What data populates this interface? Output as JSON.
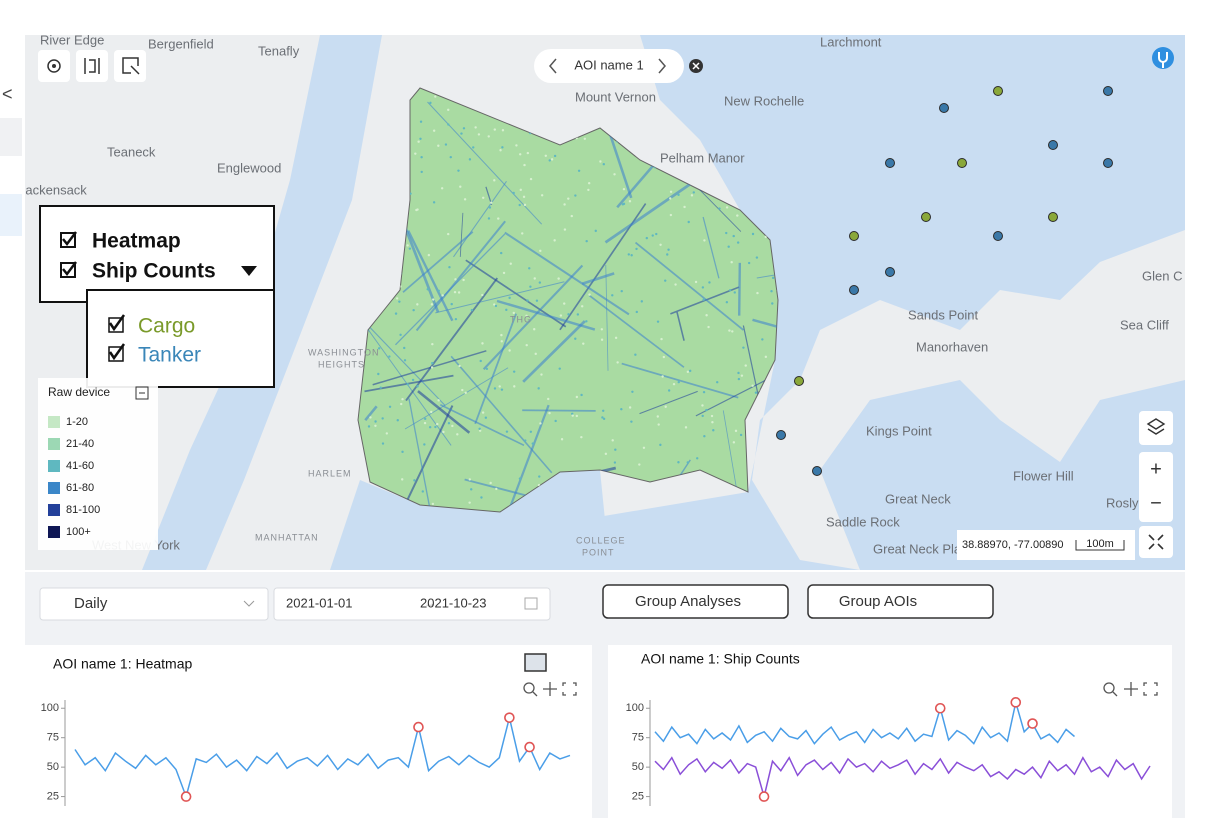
{
  "sidebar": {
    "back": "<"
  },
  "map": {
    "labels": [
      "River Edge",
      "Bergenfield",
      "Tenafly",
      "Larchmont",
      "Mount Vernon",
      "New Rochelle",
      "Teaneck",
      "Englewood",
      "Pelham Manor",
      "Hackensack",
      "Glen C",
      "Sea Cliff",
      "Sands Point",
      "Manorhaven",
      "Kings Point",
      "Flower Hill",
      "Great Neck",
      "Rosly",
      "Saddle Rock",
      "Great Neck Pla",
      "West New York",
      "THG"
    ],
    "caps": [
      "WASHINGTON",
      "HEIGHTS",
      "HARLEM",
      "MANHATTAN",
      "COLLEGE",
      "POINT"
    ],
    "aoi_name": "AOI name 1",
    "coordinates": "38.88970, -77.00890",
    "scale": "100m",
    "zoom_in": "+",
    "zoom_out": "−"
  },
  "layers": {
    "heatmap": "Heatmap",
    "ship_counts": "Ship Counts",
    "cargo": "Cargo",
    "tanker": "Tanker",
    "cargo_color": "#7a9a2a",
    "tanker_color": "#3a86b8"
  },
  "legend": {
    "title": "Raw device",
    "items": [
      {
        "label": "1-20",
        "color": "#c5e8c5"
      },
      {
        "label": "21-40",
        "color": "#9cd8b4"
      },
      {
        "label": "41-60",
        "color": "#5fb8c0"
      },
      {
        "label": "61-80",
        "color": "#3a86c8"
      },
      {
        "label": "81-100",
        "color": "#23409a"
      },
      {
        "label": "100+",
        "color": "#0e1654"
      }
    ]
  },
  "controls": {
    "interval": "Daily",
    "start_date": "2021-01-01",
    "date_separator": "→",
    "end_date": "2021-10-23",
    "group_analyses": "Group Analyses",
    "group_aois": "Group AOIs"
  },
  "chart_data": [
    {
      "type": "line",
      "title": "AOI name 1: Heatmap",
      "ylim": [
        17,
        107
      ],
      "yticks": [
        25,
        50,
        75,
        100
      ],
      "series": [
        {
          "color": "#4a9ee8",
          "values": [
            65,
            52,
            58,
            47,
            62,
            55,
            49,
            60,
            52,
            58,
            48,
            25,
            57,
            54,
            61,
            50,
            56,
            47,
            59,
            53,
            62,
            49,
            55,
            58,
            51,
            60,
            48,
            57,
            52,
            61,
            49,
            56,
            58,
            50,
            84,
            47,
            55,
            59,
            52,
            60,
            54,
            50,
            58,
            92,
            55,
            67,
            48,
            62,
            57,
            60
          ]
        },
        {
          "color": "#e05555",
          "marker": "circle-open",
          "values": [
            null,
            null,
            null,
            null,
            null,
            null,
            null,
            null,
            null,
            null,
            null,
            25,
            null,
            null,
            null,
            null,
            null,
            null,
            null,
            null,
            null,
            null,
            null,
            null,
            null,
            null,
            null,
            null,
            null,
            null,
            null,
            null,
            null,
            null,
            84,
            null,
            null,
            null,
            null,
            null,
            null,
            null,
            null,
            92,
            null,
            67,
            null,
            null,
            null,
            null
          ]
        }
      ]
    },
    {
      "type": "line",
      "title": "AOI name 1: Ship Counts",
      "ylim": [
        17,
        107
      ],
      "yticks": [
        25,
        50,
        75,
        100
      ],
      "series": [
        {
          "color": "#4a9ee8",
          "values": [
            80,
            72,
            84,
            75,
            78,
            70,
            82,
            74,
            79,
            73,
            85,
            71,
            77,
            80,
            72,
            83,
            76,
            74,
            81,
            70,
            78,
            84,
            73,
            77,
            80,
            71,
            82,
            75,
            79,
            74,
            83,
            72,
            78,
            76,
            100,
            73,
            81,
            77,
            70,
            84,
            75,
            79,
            72,
            105,
            80,
            87,
            74,
            78,
            71,
            82,
            76,
            null,
            null,
            null,
            null,
            null,
            null,
            null,
            null,
            null
          ]
        },
        {
          "color": "#8a4fd8",
          "values": [
            55,
            48,
            58,
            44,
            52,
            57,
            46,
            54,
            49,
            56,
            45,
            53,
            50,
            25,
            55,
            47,
            58,
            43,
            52,
            56,
            48,
            54,
            45,
            57,
            50,
            53,
            46,
            55,
            49,
            52,
            56,
            44,
            53,
            48,
            57,
            45,
            54,
            50,
            47,
            52,
            42,
            46,
            40,
            48,
            44,
            50,
            41,
            55,
            47,
            52,
            44,
            58,
            46,
            50,
            42,
            56,
            48,
            53,
            40,
            51
          ]
        },
        {
          "color": "#e05555",
          "marker": "circle-open",
          "values": [
            null,
            null,
            null,
            null,
            null,
            null,
            null,
            null,
            null,
            null,
            null,
            null,
            null,
            25,
            null,
            null,
            null,
            null,
            null,
            null,
            null,
            null,
            null,
            null,
            null,
            null,
            null,
            null,
            null,
            null,
            null,
            null,
            null,
            null,
            100,
            null,
            null,
            null,
            null,
            null,
            null,
            null,
            null,
            105,
            null,
            87,
            null,
            null,
            null,
            null,
            null,
            null,
            null,
            null,
            null,
            null,
            null,
            null,
            null,
            null
          ]
        }
      ]
    }
  ]
}
